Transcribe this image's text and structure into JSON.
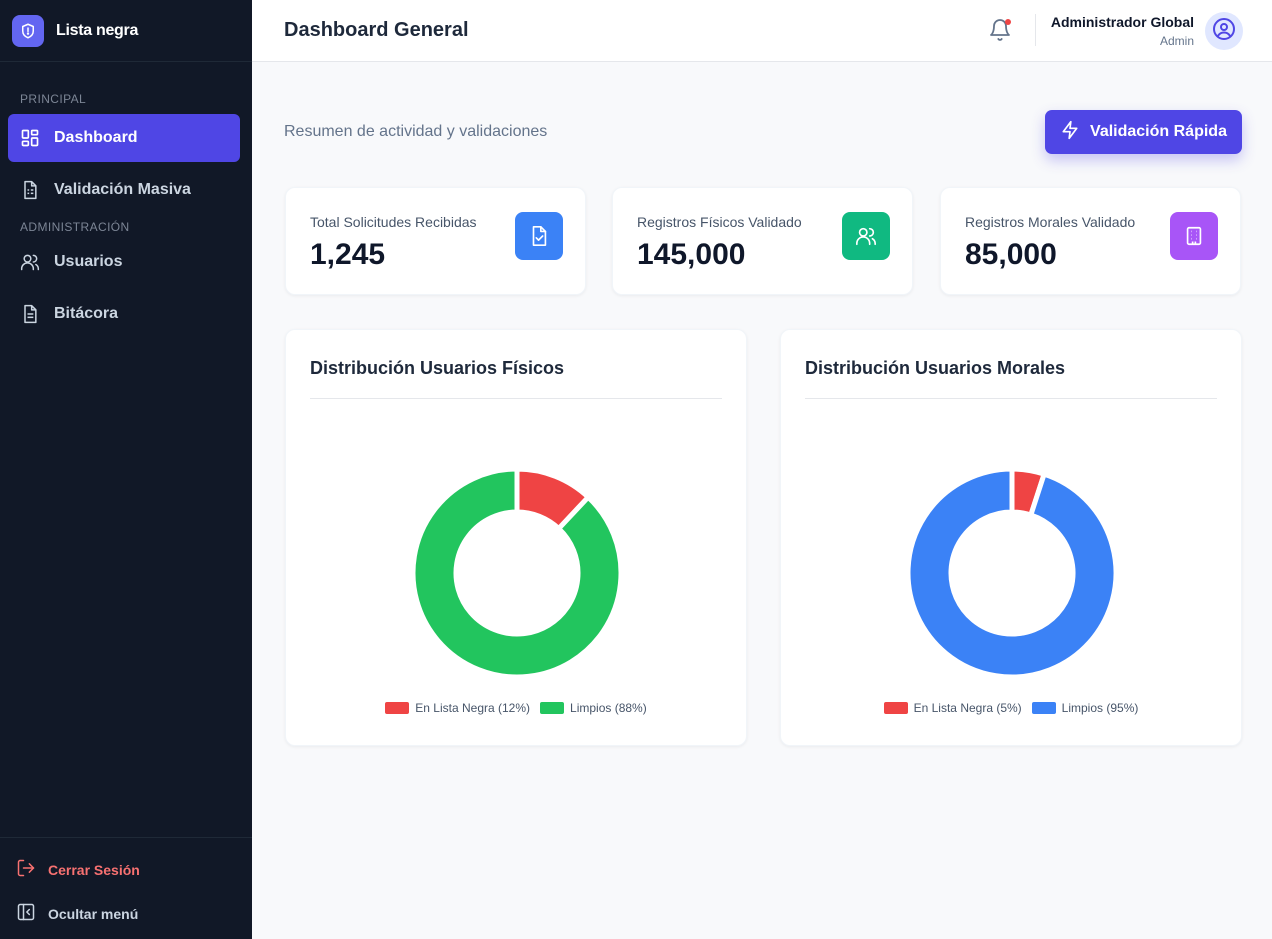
{
  "app": {
    "brand": "Lista negra"
  },
  "sidebar": {
    "sections": [
      "PRINCIPAL",
      "ADMINISTRACIÓN"
    ],
    "items": [
      {
        "label": "Dashboard",
        "icon": "dashboard-icon",
        "active": true
      },
      {
        "label": "Validación Masiva",
        "icon": "document-table-icon",
        "active": false
      },
      {
        "label": "Usuarios",
        "icon": "users-icon",
        "active": false
      },
      {
        "label": "Bitácora",
        "icon": "file-text-icon",
        "active": false
      }
    ],
    "footer": {
      "logout": "Cerrar Sesión",
      "hide_menu": "Ocultar menú"
    }
  },
  "header": {
    "title": "Dashboard General",
    "user_name": "Administrador Global",
    "user_role": "Admin",
    "has_notification": true
  },
  "main": {
    "subtitle": "Resumen de actividad y validaciones",
    "quick_button": "Validación Rápida"
  },
  "stats": [
    {
      "label": "Total Solicitudes Recibidas",
      "value": "1,245",
      "icon": "file-check-icon",
      "color": "#3b82f6"
    },
    {
      "label": "Registros Físicos Validado",
      "value": "145,000",
      "icon": "users-icon",
      "color": "#10b981"
    },
    {
      "label": "Registros Morales Validado",
      "value": "85,000",
      "icon": "building-icon",
      "color": "#a855f7"
    }
  ],
  "colors": {
    "accent": "#4f46e5",
    "sidebar_bg": "#111827",
    "blacklist": "#ef4444",
    "clean_fisicos": "#22c55e",
    "clean_morales": "#3b82f6"
  },
  "chart_data": [
    {
      "type": "pie",
      "title": "Distribución Usuarios Físicos",
      "categories": [
        "En Lista Negra (12%)",
        "Limpios (88%)"
      ],
      "values": [
        12,
        88
      ],
      "colors": [
        "#ef4444",
        "#22c55e"
      ],
      "legend": "bottom"
    },
    {
      "type": "pie",
      "title": "Distribución Usuarios Morales",
      "categories": [
        "En Lista Negra (5%)",
        "Limpios (95%)"
      ],
      "values": [
        5,
        95
      ],
      "colors": [
        "#ef4444",
        "#3b82f6"
      ],
      "legend": "bottom"
    }
  ]
}
